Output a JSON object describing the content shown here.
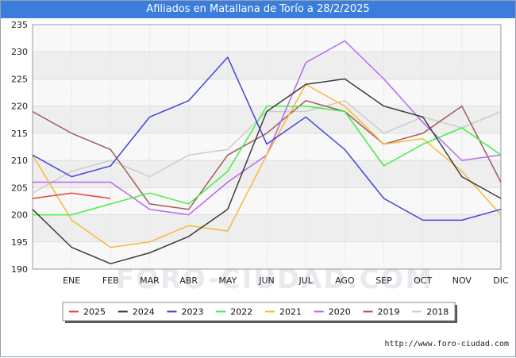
{
  "title": "Afiliados en Matallana de Torío a 28/2/2025",
  "source": "http://www.foro-ciudad.com",
  "watermark": "FORO-CIUDAD.COM",
  "chart_data": {
    "type": "line",
    "title": "Afiliados en Matallana de Torío a 28/2/2025",
    "xlabel": "",
    "ylabel": "",
    "categories": [
      "",
      "ENE",
      "FEB",
      "MAR",
      "ABR",
      "MAY",
      "JUN",
      "JUL",
      "AGO",
      "SEP",
      "OCT",
      "NOV",
      "DIC"
    ],
    "ylim": [
      190,
      235
    ],
    "yticks": [
      190,
      195,
      200,
      205,
      210,
      215,
      220,
      225,
      230,
      235
    ],
    "grid": true,
    "legend_position": "bottom",
    "series": [
      {
        "name": "2025",
        "color": "#e8443a",
        "values": [
          203,
          204,
          203,
          null,
          null,
          null,
          null,
          null,
          null,
          null,
          null,
          null,
          null
        ]
      },
      {
        "name": "2024",
        "color": "#3c3c3c",
        "values": [
          201,
          194,
          191,
          193,
          196,
          201,
          219,
          224,
          225,
          220,
          218,
          207,
          203
        ]
      },
      {
        "name": "2023",
        "color": "#4444dd",
        "values": [
          211,
          207,
          209,
          218,
          221,
          229,
          213,
          218,
          212,
          203,
          199,
          199,
          201
        ]
      },
      {
        "name": "2022",
        "color": "#44ee44",
        "values": [
          200,
          200,
          202,
          204,
          202,
          208,
          220,
          220,
          219,
          209,
          213,
          216,
          211
        ]
      },
      {
        "name": "2021",
        "color": "#f6b93b",
        "values": [
          211,
          199,
          194,
          195,
          198,
          197,
          211,
          224,
          220,
          213,
          214,
          208,
          200
        ]
      },
      {
        "name": "2020",
        "color": "#bb66ee",
        "values": [
          206,
          206,
          206,
          201,
          200,
          206,
          211,
          228,
          232,
          225,
          217,
          210,
          211
        ]
      },
      {
        "name": "2019",
        "color": "#a25a5a",
        "values": [
          219,
          215,
          212,
          202,
          201,
          211,
          215,
          221,
          219,
          213,
          215,
          220,
          206
        ]
      },
      {
        "name": "2018",
        "color": "#cccccc",
        "values": [
          204,
          208,
          210,
          207,
          211,
          212,
          219,
          219,
          221,
          215,
          218,
          216,
          219
        ]
      }
    ]
  }
}
